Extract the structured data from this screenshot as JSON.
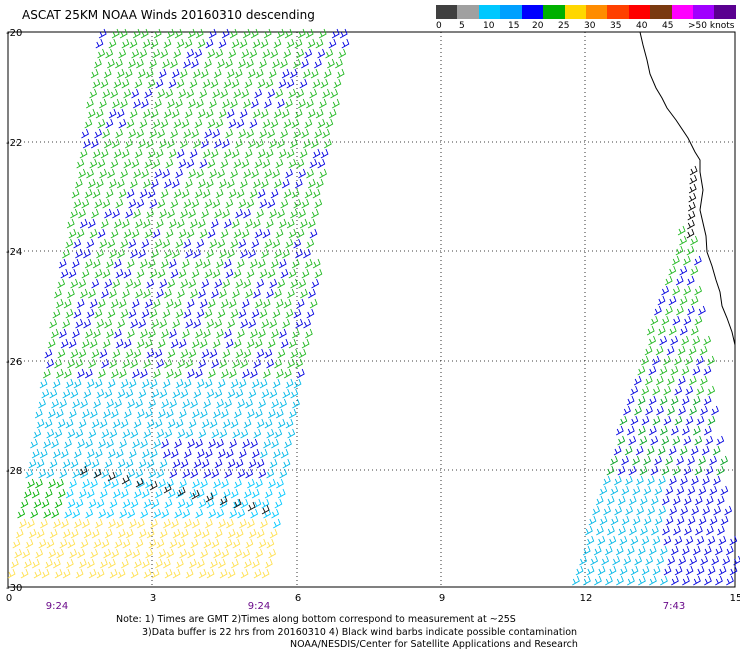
{
  "title": "ASCAT 25KM NOAA Winds 20160310 descending",
  "legend": {
    "labels": [
      "0",
      "5",
      "10",
      "15",
      "20",
      "25",
      "30",
      "35",
      "40",
      "45",
      ">50 knots"
    ],
    "colors": [
      "#404040",
      "#a0a0a0",
      "#00c8ff",
      "#00a0ff",
      "#0000ff",
      "#00b000",
      "#ffd700",
      "#ff8c00",
      "#ff4000",
      "#ff0000",
      "#7a3a10",
      "#ff00ff",
      "#a000ff",
      "#5a0090"
    ]
  },
  "map": {
    "lat_labels": [
      "-20",
      "-22",
      "-24",
      "-26",
      "-28",
      "-30"
    ],
    "lon_labels": [
      "0",
      "3",
      "6",
      "9",
      "12",
      "15"
    ],
    "pass_times": [
      "9:24",
      "9:24",
      "7:43"
    ]
  },
  "notes": {
    "line1": "Note: 1) Times are GMT 2)Times along bottom correspond to measurement at ~25S",
    "line2": "3)Data buffer is 22 hrs from 20160310 4) Black wind barbs indicate possible contamination",
    "credit": "NOAA/NESDIS/Center for Satellite Applications and Research"
  }
}
